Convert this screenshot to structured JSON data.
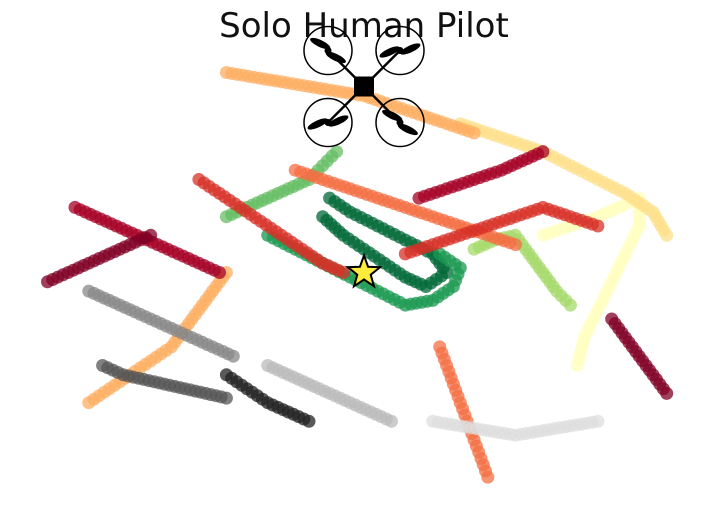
{
  "chart_data": {
    "type": "scatter",
    "title": "Solo Human Pilot",
    "xlabel": "",
    "ylabel": "",
    "grid": false,
    "axes_visible": false,
    "xlim": [
      0,
      100
    ],
    "ylim": [
      0,
      100
    ],
    "icons": [
      "quadcopter-drone-icon",
      "goal-star-icon"
    ],
    "goal": {
      "x": 50,
      "y": 50
    },
    "drone_position": {
      "x": 50,
      "y": 90
    },
    "colormap": [
      "#006837",
      "#1a9850",
      "#66bd63",
      "#a6d96a",
      "#d9ef8b",
      "#ffffbf",
      "#fee08b",
      "#fdae61",
      "#f46d43",
      "#d73027",
      "#a50026",
      "#800026"
    ],
    "gray_colors": [
      "#dddddd",
      "#bbbbbb",
      "#888888",
      "#555555",
      "#222222"
    ],
    "series": [
      {
        "color": "#006837",
        "points": [
          [
            44,
            62
          ],
          [
            47,
            58
          ],
          [
            50,
            55
          ],
          [
            53,
            52
          ],
          [
            56,
            49
          ],
          [
            59,
            47
          ],
          [
            62,
            50
          ],
          [
            60,
            54
          ],
          [
            56,
            57
          ],
          [
            52,
            60
          ],
          [
            48,
            63
          ],
          [
            45,
            66
          ]
        ]
      },
      {
        "color": "#1a9850",
        "points": [
          [
            36,
            58
          ],
          [
            40,
            55
          ],
          [
            44,
            52
          ],
          [
            48,
            49
          ],
          [
            52,
            46
          ],
          [
            56,
            43
          ],
          [
            60,
            44
          ],
          [
            63,
            47
          ],
          [
            64,
            51
          ],
          [
            61,
            54
          ]
        ]
      },
      {
        "color": "#66bd63",
        "points": [
          [
            30,
            62
          ],
          [
            33,
            64
          ],
          [
            36,
            66
          ],
          [
            39,
            68
          ],
          [
            42,
            70
          ],
          [
            44,
            73
          ],
          [
            46,
            76
          ]
        ]
      },
      {
        "color": "#a6d96a",
        "points": [
          [
            66,
            55
          ],
          [
            69,
            57
          ],
          [
            72,
            58
          ],
          [
            74,
            54
          ],
          [
            76,
            50
          ],
          [
            78,
            46
          ],
          [
            80,
            43
          ]
        ]
      },
      {
        "color": "#ffffbf",
        "points": [
          [
            76,
            58
          ],
          [
            80,
            60
          ],
          [
            84,
            62
          ],
          [
            87,
            64
          ],
          [
            90,
            66
          ],
          [
            90,
            60
          ],
          [
            88,
            54
          ],
          [
            86,
            48
          ],
          [
            84,
            42
          ],
          [
            82,
            36
          ],
          [
            81,
            30
          ]
        ]
      },
      {
        "color": "#fee08b",
        "points": [
          [
            64,
            82
          ],
          [
            68,
            80
          ],
          [
            72,
            78
          ],
          [
            76,
            76
          ],
          [
            80,
            73
          ],
          [
            84,
            70
          ],
          [
            88,
            67
          ],
          [
            92,
            63
          ],
          [
            94,
            58
          ]
        ]
      },
      {
        "color": "#fdae61",
        "points": [
          [
            30,
            93
          ],
          [
            34,
            92
          ],
          [
            38,
            91
          ],
          [
            42,
            90
          ],
          [
            46,
            89
          ],
          [
            50,
            88
          ],
          [
            54,
            86
          ],
          [
            58,
            84
          ],
          [
            62,
            82
          ],
          [
            66,
            80
          ]
        ]
      },
      {
        "color": "#fdae61",
        "points": [
          [
            10,
            22
          ],
          [
            13,
            25
          ],
          [
            16,
            28
          ],
          [
            19,
            31
          ],
          [
            22,
            34
          ],
          [
            24,
            38
          ],
          [
            26,
            42
          ],
          [
            28,
            46
          ],
          [
            30,
            50
          ]
        ]
      },
      {
        "color": "#f46d43",
        "points": [
          [
            40,
            72
          ],
          [
            44,
            70
          ],
          [
            48,
            68
          ],
          [
            52,
            66
          ],
          [
            56,
            64
          ],
          [
            60,
            62
          ],
          [
            64,
            60
          ],
          [
            68,
            58
          ],
          [
            72,
            56
          ]
        ]
      },
      {
        "color": "#f46d43",
        "points": [
          [
            68,
            6
          ],
          [
            67,
            10
          ],
          [
            66,
            14
          ],
          [
            65,
            18
          ],
          [
            64,
            22
          ],
          [
            63,
            26
          ],
          [
            62,
            30
          ],
          [
            61,
            34
          ]
        ]
      },
      {
        "color": "#d73027",
        "points": [
          [
            26,
            70
          ],
          [
            29,
            67
          ],
          [
            32,
            64
          ],
          [
            35,
            61
          ],
          [
            38,
            58
          ],
          [
            41,
            55
          ],
          [
            44,
            52
          ],
          [
            47,
            50
          ]
        ]
      },
      {
        "color": "#d73027",
        "points": [
          [
            56,
            54
          ],
          [
            60,
            56
          ],
          [
            64,
            58
          ],
          [
            68,
            60
          ],
          [
            72,
            62
          ],
          [
            76,
            64
          ],
          [
            80,
            62
          ],
          [
            84,
            60
          ]
        ]
      },
      {
        "color": "#a50026",
        "points": [
          [
            8,
            64
          ],
          [
            11,
            62
          ],
          [
            14,
            60
          ],
          [
            17,
            58
          ],
          [
            20,
            56
          ],
          [
            23,
            54
          ],
          [
            26,
            52
          ],
          [
            29,
            50
          ]
        ]
      },
      {
        "color": "#a50026",
        "points": [
          [
            58,
            66
          ],
          [
            62,
            68
          ],
          [
            66,
            70
          ],
          [
            70,
            72
          ],
          [
            73,
            74
          ],
          [
            76,
            76
          ]
        ]
      },
      {
        "color": "#800026",
        "points": [
          [
            4,
            48
          ],
          [
            7,
            50
          ],
          [
            10,
            52
          ],
          [
            13,
            54
          ],
          [
            16,
            56
          ],
          [
            19,
            58
          ]
        ]
      },
      {
        "color": "#800026",
        "points": [
          [
            86,
            40
          ],
          [
            88,
            36
          ],
          [
            90,
            32
          ],
          [
            92,
            28
          ],
          [
            94,
            24
          ]
        ]
      },
      {
        "color": "#888888",
        "points": [
          [
            10,
            46
          ],
          [
            13,
            44
          ],
          [
            16,
            42
          ],
          [
            19,
            40
          ],
          [
            22,
            38
          ],
          [
            25,
            36
          ],
          [
            28,
            34
          ],
          [
            31,
            32
          ]
        ]
      },
      {
        "color": "#555555",
        "points": [
          [
            12,
            30
          ],
          [
            15,
            28
          ],
          [
            18,
            27
          ],
          [
            21,
            26
          ],
          [
            24,
            25
          ],
          [
            27,
            24
          ],
          [
            30,
            23
          ]
        ]
      },
      {
        "color": "#bbbbbb",
        "points": [
          [
            36,
            30
          ],
          [
            39,
            28
          ],
          [
            42,
            26
          ],
          [
            45,
            24
          ],
          [
            48,
            22
          ],
          [
            51,
            20
          ],
          [
            54,
            18
          ]
        ]
      },
      {
        "color": "#dddddd",
        "points": [
          [
            60,
            18
          ],
          [
            64,
            17
          ],
          [
            68,
            16
          ],
          [
            72,
            15
          ],
          [
            76,
            16
          ],
          [
            80,
            17
          ],
          [
            84,
            18
          ]
        ]
      },
      {
        "color": "#222222",
        "points": [
          [
            30,
            28
          ],
          [
            33,
            25
          ],
          [
            36,
            22
          ],
          [
            39,
            20
          ],
          [
            42,
            18
          ]
        ]
      }
    ]
  }
}
